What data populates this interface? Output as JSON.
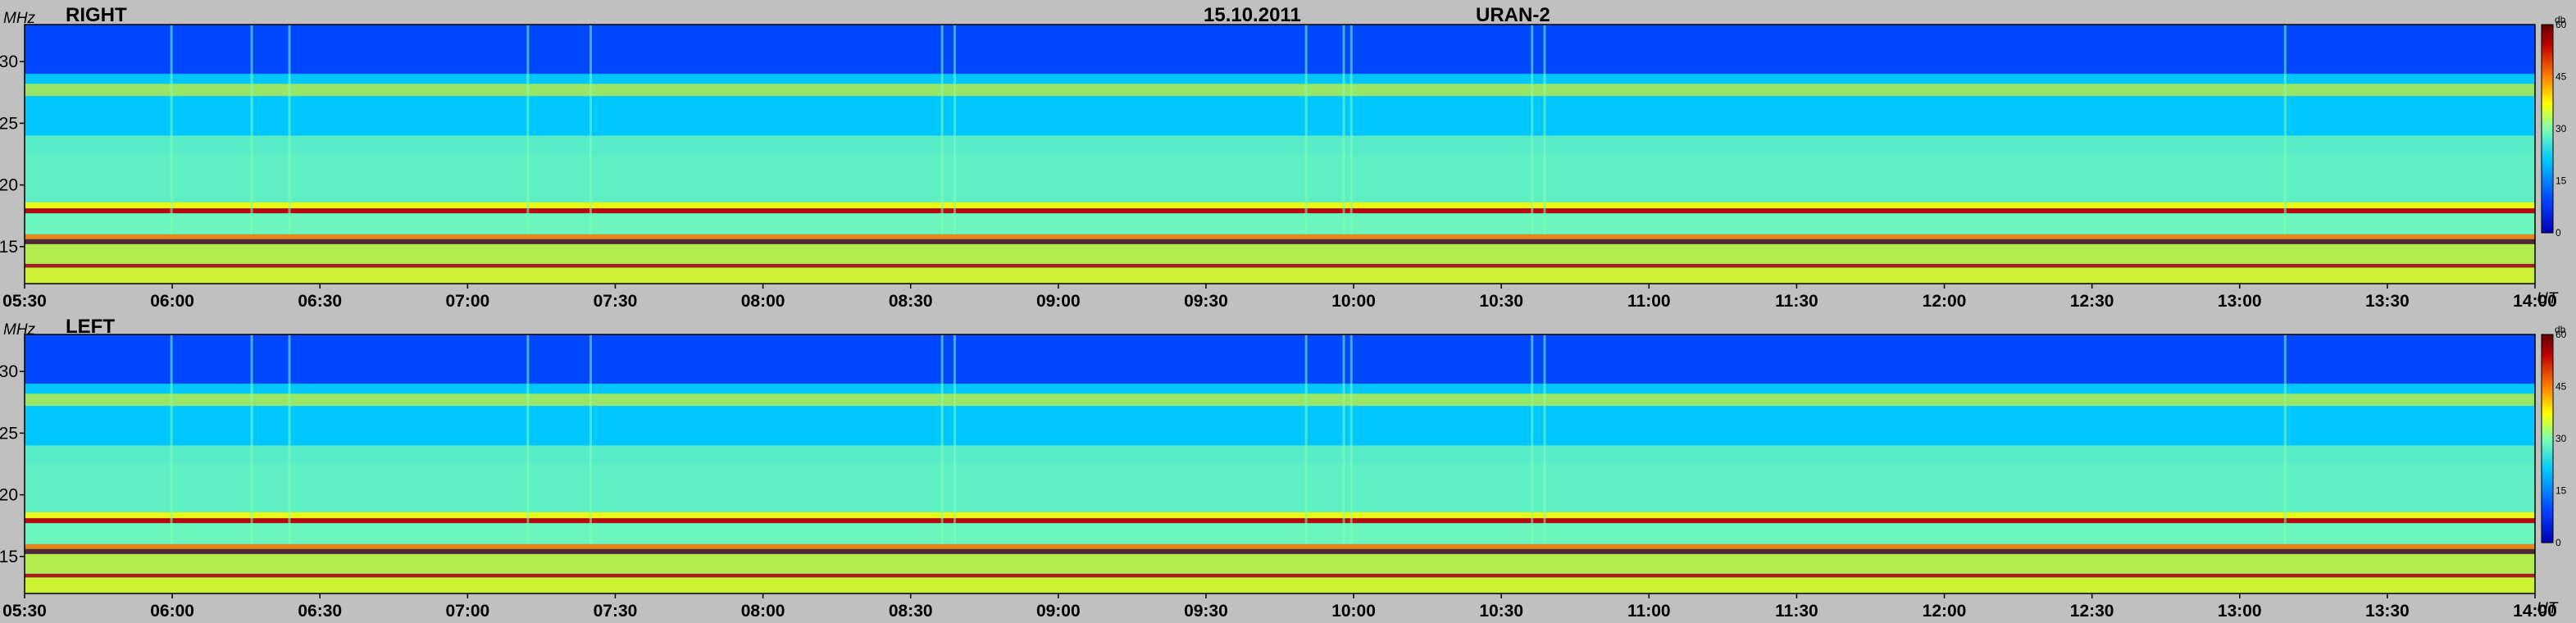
{
  "header": {
    "date": "15.10.2011",
    "instrument": "URAN-2"
  },
  "chart_data": [
    {
      "type": "heatmap",
      "title": "RIGHT",
      "ylabel": "MHz",
      "xlabel": "UT",
      "ylim": [
        12,
        33
      ],
      "x_ticks": [
        "05:30",
        "06:00",
        "06:30",
        "07:00",
        "07:30",
        "08:00",
        "08:30",
        "09:00",
        "09:30",
        "10:00",
        "10:30",
        "11:00",
        "11:30",
        "12:00",
        "12:30",
        "13:00",
        "13:30",
        "14:00"
      ],
      "y_ticks": [
        15,
        20,
        25,
        30
      ],
      "colorbar": {
        "unit": "db",
        "range": [
          0,
          60
        ],
        "ticks": [
          0,
          15,
          30,
          45,
          60
        ]
      },
      "colormap": [
        "#0000b0",
        "#0040ff",
        "#00c8ff",
        "#7fffb0",
        "#ffff00",
        "#ff8000",
        "#c00000",
        "#600000"
      ]
    },
    {
      "type": "heatmap",
      "title": "LEFT",
      "ylabel": "MHz",
      "xlabel": "UT",
      "ylim": [
        12,
        33
      ],
      "x_ticks": [
        "05:30",
        "06:00",
        "06:30",
        "07:00",
        "07:30",
        "08:00",
        "08:30",
        "09:00",
        "09:30",
        "10:00",
        "10:30",
        "11:00",
        "11:30",
        "12:00",
        "12:30",
        "13:00",
        "13:30",
        "14:00"
      ],
      "y_ticks": [
        15,
        20,
        25,
        30
      ],
      "colorbar": {
        "unit": "db",
        "range": [
          0,
          60
        ],
        "ticks": [
          0,
          15,
          30,
          45,
          60
        ]
      },
      "colormap": [
        "#0000b0",
        "#0040ff",
        "#00c8ff",
        "#7fffb0",
        "#ffff00",
        "#ff8000",
        "#c00000",
        "#600000"
      ]
    }
  ]
}
